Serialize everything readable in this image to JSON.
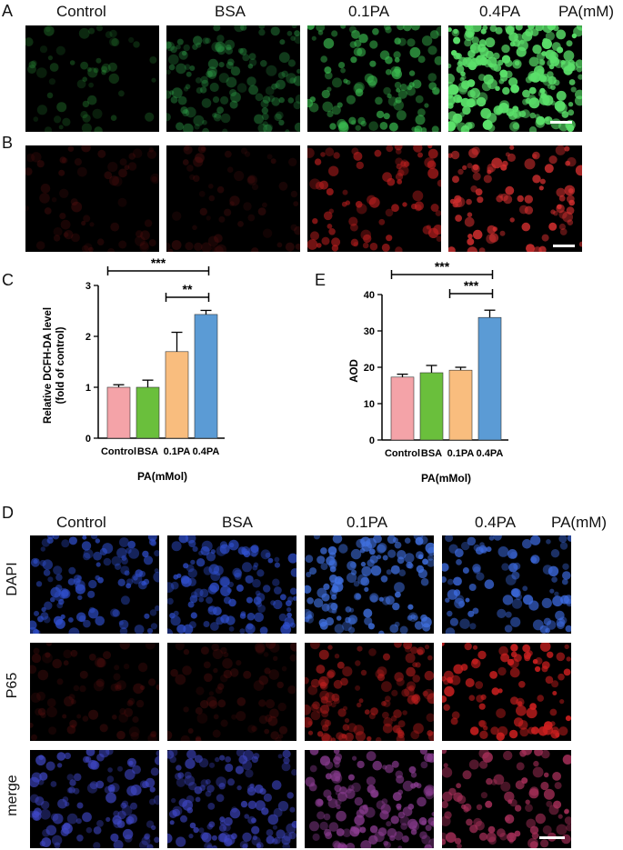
{
  "panelA": {
    "label": "A",
    "headers": [
      "Control",
      "BSA",
      "0.1PA",
      "0.4PA"
    ],
    "unit": "PA(mM)"
  },
  "panelB": {
    "label": "B"
  },
  "panelC": {
    "label": "C"
  },
  "panelE": {
    "label": "E"
  },
  "panelD": {
    "label": "D",
    "headers": [
      "Control",
      "BSA",
      "0.1PA",
      "0.4PA"
    ],
    "unit": "PA(mM)",
    "rows": [
      "DAPI",
      "P65",
      "merge"
    ]
  },
  "chart_data": [
    {
      "type": "bar",
      "panel": "C",
      "categories": [
        "Control",
        "BSA",
        "0.1PA",
        "0.4PA"
      ],
      "values": [
        1.0,
        1.0,
        1.7,
        2.43
      ],
      "errors": [
        0.05,
        0.14,
        0.38,
        0.08
      ],
      "colors": [
        "#f4a3a8",
        "#6abf3c",
        "#f9bd7e",
        "#5b9bd5"
      ],
      "ylabel": "Relative DCFH-DA level\n(fold of control)",
      "xlabel": "PA(mMol)",
      "ylim": [
        0,
        3
      ],
      "yticks": [
        0,
        1,
        2,
        3
      ],
      "significance": [
        {
          "from": "Control",
          "to": "0.4PA",
          "label": "***"
        },
        {
          "from": "0.1PA",
          "to": "0.4PA",
          "label": "**"
        }
      ]
    },
    {
      "type": "bar",
      "panel": "E",
      "categories": [
        "Control",
        "BSA",
        "0.1PA",
        "0.4PA"
      ],
      "values": [
        17.3,
        18.5,
        19.2,
        33.7
      ],
      "errors": [
        0.8,
        2.0,
        0.8,
        2.0
      ],
      "colors": [
        "#f4a3a8",
        "#6abf3c",
        "#f9bd7e",
        "#5b9bd5"
      ],
      "ylabel": "AOD",
      "xlabel": "PA(mMol)",
      "ylim": [
        0,
        40
      ],
      "yticks": [
        0,
        10,
        20,
        30,
        40
      ],
      "significance": [
        {
          "from": "Control",
          "to": "0.4PA",
          "label": "***"
        },
        {
          "from": "0.1PA",
          "to": "0.4PA",
          "label": "***"
        }
      ]
    }
  ],
  "micrographs": {
    "A": [
      {
        "color": "#2f9a3c",
        "count": 55,
        "brightness": 0.35
      },
      {
        "color": "#2fa14a",
        "count": 130,
        "brightness": 0.45
      },
      {
        "color": "#3cc052",
        "count": 110,
        "brightness": 0.7
      },
      {
        "color": "#5be06a",
        "count": 220,
        "brightness": 1.0
      }
    ],
    "B": [
      {
        "color": "#7a1616",
        "count": 60,
        "brightness": 0.3
      },
      {
        "color": "#7a1818",
        "count": 60,
        "brightness": 0.3
      },
      {
        "color": "#c22020",
        "count": 80,
        "brightness": 0.7
      },
      {
        "color": "#d83030",
        "count": 90,
        "brightness": 0.85
      }
    ],
    "DAPI": [
      {
        "color": "#3050d0",
        "count": 110,
        "brightness": 0.75
      },
      {
        "color": "#3050d0",
        "count": 120,
        "brightness": 0.75
      },
      {
        "color": "#4070e0",
        "count": 130,
        "brightness": 0.85
      },
      {
        "color": "#3d6be0",
        "count": 90,
        "brightness": 0.8
      }
    ],
    "P65": [
      {
        "color": "#6e1414",
        "count": 70,
        "brightness": 0.35
      },
      {
        "color": "#6e1414",
        "count": 70,
        "brightness": 0.35
      },
      {
        "color": "#b81e1e",
        "count": 120,
        "brightness": 0.65
      },
      {
        "color": "#d02020",
        "count": 90,
        "brightness": 0.9
      }
    ],
    "merge": [
      {
        "color": "#4048c8",
        "count": 110,
        "brightness": 0.7
      },
      {
        "color": "#4048c8",
        "count": 120,
        "brightness": 0.7
      },
      {
        "color": "#8a3c90",
        "count": 130,
        "brightness": 0.8
      },
      {
        "color": "#a8305a",
        "count": 90,
        "brightness": 0.85
      }
    ]
  }
}
